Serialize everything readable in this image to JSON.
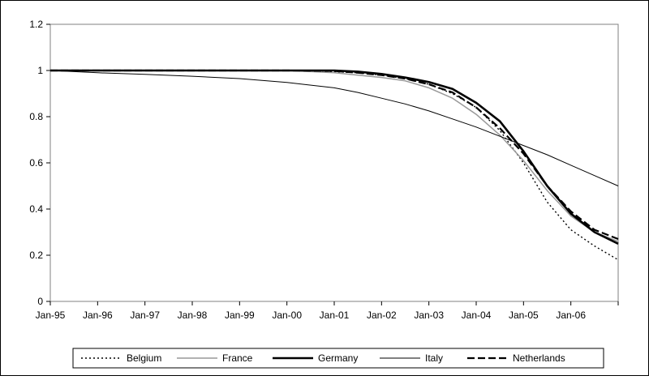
{
  "chart_data": {
    "type": "line",
    "title": "",
    "xlabel": "",
    "ylabel": "",
    "ylim": [
      0,
      1.2
    ],
    "yticks": [
      "0",
      "0.2",
      "0.4",
      "0.6",
      "0.8",
      "1",
      "1.2"
    ],
    "xtick_labels": [
      "Jan-95",
      "Jan-96",
      "Jan-97",
      "Jan-98",
      "Jan-99",
      "Jan-00",
      "Jan-01",
      "Jan-02",
      "Jan-03",
      "Jan-04",
      "Jan-05",
      "Jan-06"
    ],
    "x": [
      1995.0,
      1996.0,
      1997.0,
      1998.0,
      1999.0,
      2000.0,
      2001.0,
      2001.5,
      2002.0,
      2002.5,
      2003.0,
      2003.5,
      2004.0,
      2004.5,
      2005.0,
      2005.5,
      2006.0,
      2006.5,
      2007.0
    ],
    "series": [
      {
        "name": "Belgium",
        "style": "dotted",
        "color": "#000000",
        "values": [
          1.0,
          1.0,
          1.0,
          1.0,
          1.0,
          1.0,
          0.995,
          0.99,
          0.98,
          0.965,
          0.94,
          0.9,
          0.84,
          0.74,
          0.6,
          0.43,
          0.31,
          0.24,
          0.18
        ]
      },
      {
        "name": "France",
        "style": "solid-gray",
        "color": "#999999",
        "values": [
          1.0,
          1.0,
          1.0,
          1.0,
          1.0,
          1.0,
          0.99,
          0.98,
          0.97,
          0.955,
          0.925,
          0.88,
          0.81,
          0.72,
          0.61,
          0.48,
          0.37,
          0.3,
          0.26
        ]
      },
      {
        "name": "Germany",
        "style": "thick",
        "color": "#000000",
        "values": [
          1.0,
          1.0,
          1.0,
          1.0,
          1.0,
          1.0,
          1.0,
          0.995,
          0.985,
          0.97,
          0.95,
          0.92,
          0.86,
          0.78,
          0.65,
          0.5,
          0.38,
          0.3,
          0.25
        ]
      },
      {
        "name": "Italy",
        "style": "thin",
        "color": "#000000",
        "values": [
          1.0,
          0.99,
          0.983,
          0.975,
          0.965,
          0.948,
          0.925,
          0.905,
          0.88,
          0.855,
          0.825,
          0.79,
          0.755,
          0.715,
          0.675,
          0.635,
          0.59,
          0.545,
          0.5
        ]
      },
      {
        "name": "Netherlands",
        "style": "dashed",
        "color": "#000000",
        "values": [
          1.0,
          1.0,
          1.0,
          1.0,
          1.0,
          1.0,
          0.998,
          0.99,
          0.98,
          0.965,
          0.94,
          0.905,
          0.84,
          0.75,
          0.64,
          0.5,
          0.39,
          0.31,
          0.27
        ]
      }
    ],
    "grid": false,
    "legend_position": "bottom"
  }
}
